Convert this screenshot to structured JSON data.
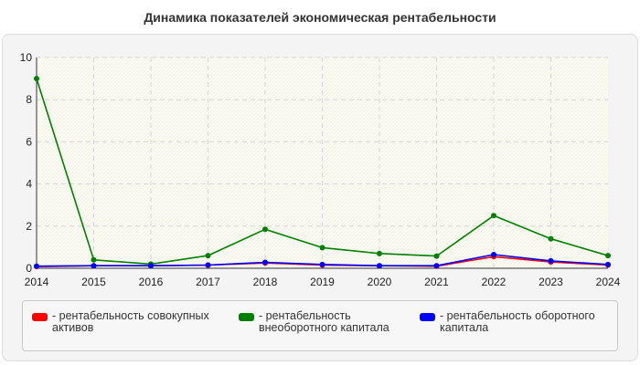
{
  "chart_data": {
    "type": "line",
    "title": "Динамика показателей экономическая рентабельности",
    "xlabel": "",
    "ylabel": "",
    "x": [
      "2014",
      "2015",
      "2016",
      "2017",
      "2018",
      "2019",
      "2020",
      "2021",
      "2022",
      "2023",
      "2024"
    ],
    "ylim": [
      0,
      10
    ],
    "yticks": [
      "0",
      "2",
      "4",
      "6",
      "8",
      "10"
    ],
    "grid": true,
    "legend_position": "bottom",
    "series": [
      {
        "name": "рентабельность совокупных активов",
        "color": "#ff0000",
        "values": [
          0.08,
          0.12,
          0.12,
          0.15,
          0.25,
          0.15,
          0.12,
          0.1,
          0.55,
          0.3,
          0.15
        ]
      },
      {
        "name": "рентабельность внеоборотного капитала",
        "color": "#008000",
        "values": [
          9.0,
          0.4,
          0.2,
          0.6,
          1.85,
          0.98,
          0.7,
          0.58,
          2.5,
          1.4,
          0.6
        ]
      },
      {
        "name": "рентабельность оборотного капитала",
        "color": "#0000ff",
        "values": [
          0.1,
          0.12,
          0.12,
          0.15,
          0.28,
          0.18,
          0.12,
          0.12,
          0.65,
          0.35,
          0.18
        ]
      }
    ]
  }
}
